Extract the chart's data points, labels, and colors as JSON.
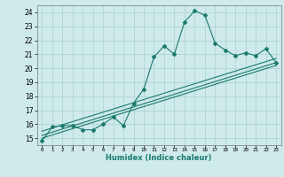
{
  "title": "",
  "xlabel": "Humidex (Indice chaleur)",
  "ylabel": "",
  "background_color": "#ceeaea",
  "grid_color": "#b0d4d4",
  "line_color": "#1a7a6e",
  "x_min": -0.5,
  "x_max": 23.5,
  "y_min": 14.5,
  "y_max": 24.5,
  "y_ticks": [
    15,
    16,
    17,
    18,
    19,
    20,
    21,
    22,
    23,
    24
  ],
  "x_ticks": [
    0,
    1,
    2,
    3,
    4,
    5,
    6,
    7,
    8,
    9,
    10,
    11,
    12,
    13,
    14,
    15,
    16,
    17,
    18,
    19,
    20,
    21,
    22,
    23
  ],
  "series1_x": [
    0,
    1,
    2,
    3,
    4,
    5,
    6,
    7,
    8,
    9,
    10,
    11,
    12,
    13,
    14,
    15,
    16,
    17,
    18,
    19,
    20,
    21,
    22,
    23
  ],
  "series1_y": [
    14.8,
    15.8,
    15.9,
    15.9,
    15.6,
    15.6,
    16.0,
    16.5,
    15.9,
    17.5,
    18.5,
    20.8,
    21.6,
    21.0,
    23.3,
    24.1,
    23.8,
    21.8,
    21.3,
    20.9,
    21.1,
    20.9,
    21.4,
    20.4
  ],
  "line1_x": [
    0,
    23
  ],
  "line1_y": [
    15.0,
    20.2
  ],
  "line2_x": [
    0,
    23
  ],
  "line2_y": [
    15.2,
    20.4
  ],
  "line3_x": [
    0,
    23
  ],
  "line3_y": [
    15.5,
    20.7
  ]
}
